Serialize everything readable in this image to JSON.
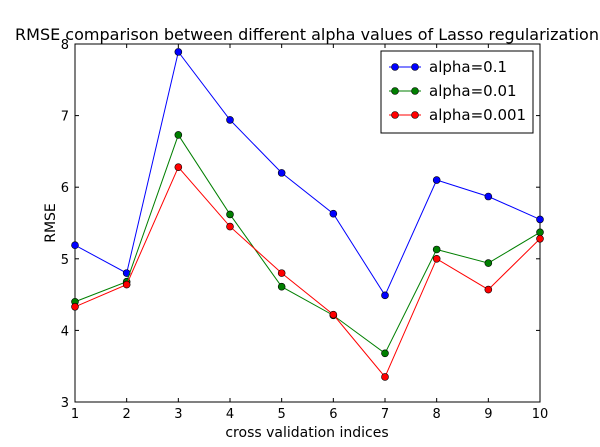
{
  "chart_data": {
    "type": "line",
    "title": "RMSE comparison between different alpha values of Lasso regularization",
    "xlabel": "cross validation indices",
    "ylabel": "RMSE",
    "x": [
      1,
      2,
      3,
      4,
      5,
      6,
      7,
      8,
      9,
      10
    ],
    "xlim": [
      1,
      10
    ],
    "ylim": [
      3,
      8
    ],
    "xticks": [
      1,
      2,
      3,
      4,
      5,
      6,
      7,
      8,
      9,
      10
    ],
    "yticks": [
      3,
      4,
      5,
      6,
      7,
      8
    ],
    "grid": false,
    "legend_position": "top-right",
    "series": [
      {
        "name": "alpha=0.1",
        "color": "#0000ff",
        "marker": "circle",
        "values": [
          5.19,
          4.8,
          7.89,
          6.94,
          6.2,
          5.63,
          4.49,
          6.1,
          5.87,
          5.55
        ]
      },
      {
        "name": "alpha=0.01",
        "color": "#007f00",
        "marker": "circle",
        "values": [
          4.4,
          4.68,
          6.73,
          5.62,
          4.61,
          4.21,
          3.68,
          5.13,
          4.94,
          5.37
        ]
      },
      {
        "name": "alpha=0.001",
        "color": "#ff0000",
        "marker": "circle",
        "values": [
          4.33,
          4.64,
          6.28,
          5.45,
          4.8,
          4.22,
          3.35,
          5.0,
          4.57,
          5.28
        ]
      }
    ]
  }
}
